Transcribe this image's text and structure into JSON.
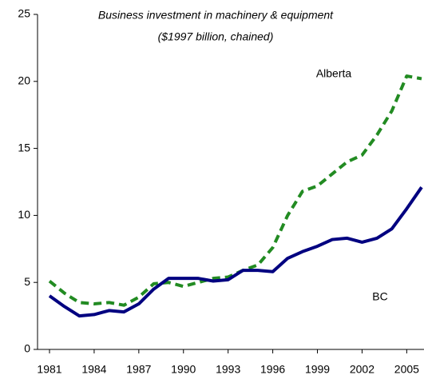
{
  "chart_data": {
    "type": "line",
    "title": "Business investment in machinery & equipment",
    "subtitle": "($1997 billion, chained)",
    "x": [
      1981,
      1982,
      1983,
      1984,
      1985,
      1986,
      1987,
      1988,
      1989,
      1990,
      1991,
      1992,
      1993,
      1994,
      1995,
      1996,
      1997,
      1998,
      1999,
      2000,
      2001,
      2002,
      2003,
      2004,
      2005,
      2006
    ],
    "series": [
      {
        "name": "Alberta",
        "color": "#228b22",
        "dashed": true,
        "values": [
          5.1,
          4.2,
          3.5,
          3.4,
          3.5,
          3.3,
          3.9,
          4.9,
          5.0,
          4.7,
          5.0,
          5.3,
          5.4,
          5.9,
          6.3,
          7.6,
          10.0,
          11.8,
          12.2,
          13.1,
          14.0,
          14.5,
          16.0,
          17.8,
          20.4,
          20.2
        ]
      },
      {
        "name": "BC",
        "color": "#000080",
        "dashed": false,
        "values": [
          4.0,
          3.2,
          2.5,
          2.6,
          2.9,
          2.8,
          3.4,
          4.5,
          5.3,
          5.3,
          5.3,
          5.1,
          5.2,
          5.9,
          5.9,
          5.8,
          6.8,
          7.3,
          7.7,
          8.2,
          8.3,
          8.0,
          8.3,
          9.0,
          10.5,
          12.1
        ]
      }
    ],
    "xlim": [
      1981,
      2006
    ],
    "xticks": [
      1981,
      1984,
      1987,
      1990,
      1993,
      1996,
      1999,
      2002,
      2005
    ],
    "ylim": [
      0,
      25
    ],
    "yticks": [
      0,
      5,
      10,
      15,
      20,
      25
    ],
    "grid": false
  }
}
